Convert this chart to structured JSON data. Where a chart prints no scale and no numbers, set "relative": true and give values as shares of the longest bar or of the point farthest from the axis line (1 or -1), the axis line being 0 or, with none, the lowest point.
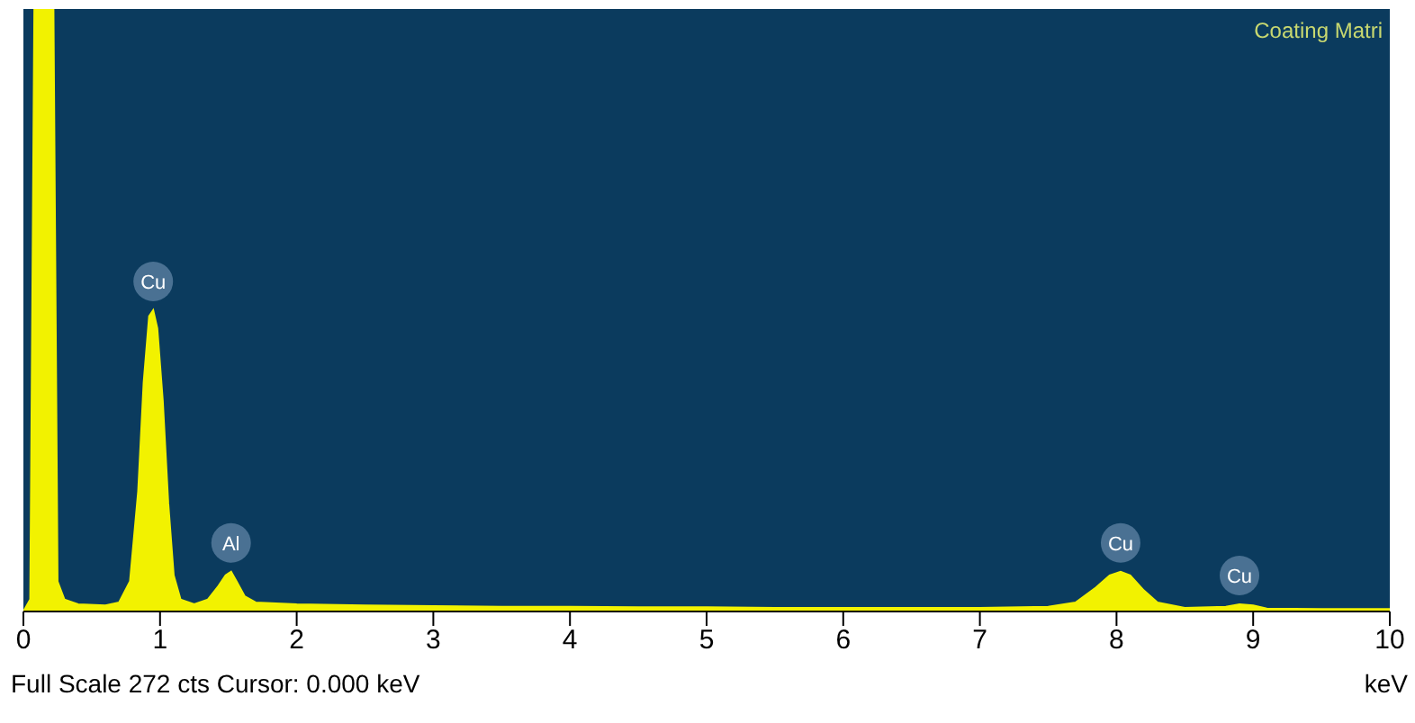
{
  "chart_data": {
    "type": "area",
    "relative": true,
    "title": "Coating Matri",
    "xlabel": "keV",
    "x": [
      0,
      0.05,
      0.08,
      0.22,
      0.25,
      0.3,
      0.4,
      0.6,
      0.7,
      0.78,
      0.84,
      0.88,
      0.92,
      0.95,
      0.98,
      1.02,
      1.06,
      1.1,
      1.15,
      1.25,
      1.35,
      1.42,
      1.48,
      1.52,
      1.56,
      1.62,
      1.7,
      2,
      2.5,
      3,
      3.5,
      4,
      4.5,
      5,
      5.5,
      6,
      6.5,
      7,
      7.5,
      7.7,
      7.85,
      7.95,
      8.03,
      8.1,
      8.2,
      8.3,
      8.5,
      8.8,
      8.9,
      9,
      9.1,
      9.5,
      10
    ],
    "series": [
      {
        "color": "#f2f200",
        "values": [
          0,
          0.02,
          1,
          1,
          0.05,
          0.02,
          0.012,
          0.01,
          0.015,
          0.05,
          0.2,
          0.38,
          0.49,
          0.5,
          0.47,
          0.35,
          0.18,
          0.06,
          0.02,
          0.012,
          0.02,
          0.04,
          0.06,
          0.066,
          0.05,
          0.025,
          0.015,
          0.012,
          0.01,
          0.009,
          0.008,
          0.008,
          0.007,
          0.007,
          0.006,
          0.006,
          0.006,
          0.006,
          0.008,
          0.015,
          0.04,
          0.06,
          0.066,
          0.06,
          0.035,
          0.015,
          0.006,
          0.008,
          0.012,
          0.01,
          0.005,
          0.004,
          0.004
        ]
      }
    ],
    "xlim": [
      0,
      10
    ],
    "xticks": [
      0,
      1,
      2,
      3,
      4,
      5,
      6,
      7,
      8,
      9,
      10
    ],
    "annotations": [
      {
        "text": "Cu",
        "x": 0.95,
        "y": 0.5
      },
      {
        "text": "Al",
        "x": 1.52,
        "y": 0.066
      },
      {
        "text": "Cu",
        "x": 8.03,
        "y": 0.066
      },
      {
        "text": "Cu",
        "x": 8.9,
        "y": 0.012
      },
      "Full Scale 272 cts  Cursor: 0.000 keV"
    ]
  }
}
